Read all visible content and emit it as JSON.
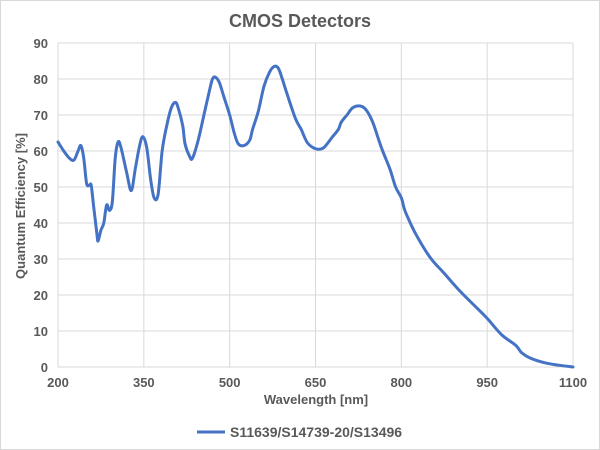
{
  "chart_data": {
    "type": "line",
    "title": "CMOS Detectors",
    "xlabel": "Wavelength [nm]",
    "ylabel": "Quantum Efficiency [%]",
    "xlim": [
      200,
      1100
    ],
    "ylim": [
      0,
      90
    ],
    "xticks": [
      200,
      350,
      500,
      650,
      800,
      950,
      1100
    ],
    "yticks": [
      0,
      10,
      20,
      30,
      40,
      50,
      60,
      70,
      80,
      90
    ],
    "grid": true,
    "legend_position": "bottom",
    "series": [
      {
        "name": "S11639/S14739-20/S13496",
        "color": "#4472c4",
        "x": [
          200,
          210,
          220,
          228,
          235,
          240,
          245,
          250,
          255,
          258,
          262,
          268,
          270,
          275,
          280,
          285,
          290,
          295,
          300,
          305,
          310,
          320,
          328,
          335,
          342,
          348,
          355,
          362,
          368,
          375,
          382,
          390,
          398,
          405,
          410,
          418,
          422,
          430,
          435,
          445,
          455,
          465,
          470,
          475,
          482,
          490,
          500,
          508,
          515,
          525,
          535,
          540,
          550,
          560,
          570,
          578,
          585,
          592,
          600,
          615,
          625,
          635,
          645,
          655,
          665,
          680,
          690,
          695,
          705,
          715,
          728,
          738,
          750,
          765,
          780,
          790,
          800,
          805,
          810,
          825,
          850,
          875,
          900,
          925,
          950,
          975,
          1000,
          1010,
          1025,
          1050,
          1075,
          1100
        ],
        "y": [
          62.5,
          60,
          58,
          57.5,
          60,
          61.5,
          58,
          51,
          50.5,
          50.5,
          45,
          37,
          35,
          38,
          40,
          45,
          43.5,
          46,
          58,
          62.5,
          61,
          54,
          49,
          55,
          61,
          64,
          61,
          52,
          47,
          48,
          60,
          67,
          72,
          73.5,
          72,
          67,
          62,
          58.5,
          58,
          63,
          70,
          77,
          80,
          80.5,
          79,
          75,
          70,
          65,
          62,
          61.5,
          63,
          66,
          71,
          78,
          82,
          83.5,
          83,
          80,
          76,
          69,
          66,
          62.5,
          61,
          60.5,
          61,
          64,
          66,
          68,
          70,
          72,
          72.5,
          71.5,
          68,
          61,
          55,
          50,
          47,
          44,
          42,
          37,
          30.5,
          26,
          21.5,
          17.5,
          13.5,
          9,
          6,
          4,
          2.5,
          1.2,
          0.5,
          0
        ]
      }
    ]
  }
}
